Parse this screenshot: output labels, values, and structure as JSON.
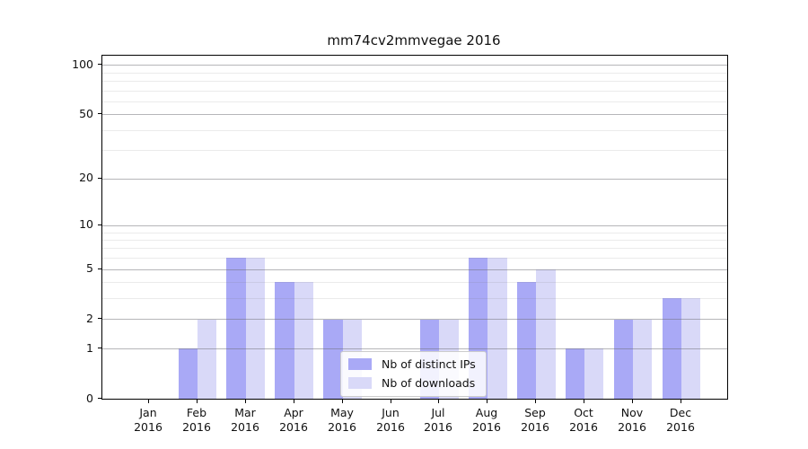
{
  "chart_data": {
    "type": "bar",
    "title": "mm74cv2mmvegae 2016",
    "x_tick_labels": [
      {
        "month": "Jan",
        "year": "2016"
      },
      {
        "month": "Feb",
        "year": "2016"
      },
      {
        "month": "Mar",
        "year": "2016"
      },
      {
        "month": "Apr",
        "year": "2016"
      },
      {
        "month": "May",
        "year": "2016"
      },
      {
        "month": "Jun",
        "year": "2016"
      },
      {
        "month": "Jul",
        "year": "2016"
      },
      {
        "month": "Aug",
        "year": "2016"
      },
      {
        "month": "Sep",
        "year": "2016"
      },
      {
        "month": "Oct",
        "year": "2016"
      },
      {
        "month": "Nov",
        "year": "2016"
      },
      {
        "month": "Dec",
        "year": "2016"
      }
    ],
    "series": [
      {
        "name": "Nb of distinct IPs",
        "color": "#a9a9f6",
        "values": [
          0,
          1,
          6,
          4,
          2,
          0,
          2,
          6,
          4,
          1,
          2,
          3
        ]
      },
      {
        "name": "Nb of downloads",
        "color": "#d9d9f8",
        "values": [
          0,
          2,
          6,
          4,
          2,
          0,
          2,
          6,
          5,
          1,
          2,
          3
        ]
      }
    ],
    "y_axis": {
      "scale": "log1p",
      "major_ticks": [
        0,
        1,
        2,
        5,
        10,
        20,
        50,
        100
      ],
      "minor_gridlines": [
        3,
        4,
        6,
        7,
        8,
        9,
        30,
        40,
        60,
        70,
        80,
        90
      ],
      "ylim": [
        0,
        120
      ]
    },
    "grid": true,
    "legend_position": "lower-center"
  },
  "colors": {
    "background": "#ffffff",
    "axis": "#000000",
    "major_grid": "#bdbdbd",
    "minor_grid": "#ececec"
  }
}
